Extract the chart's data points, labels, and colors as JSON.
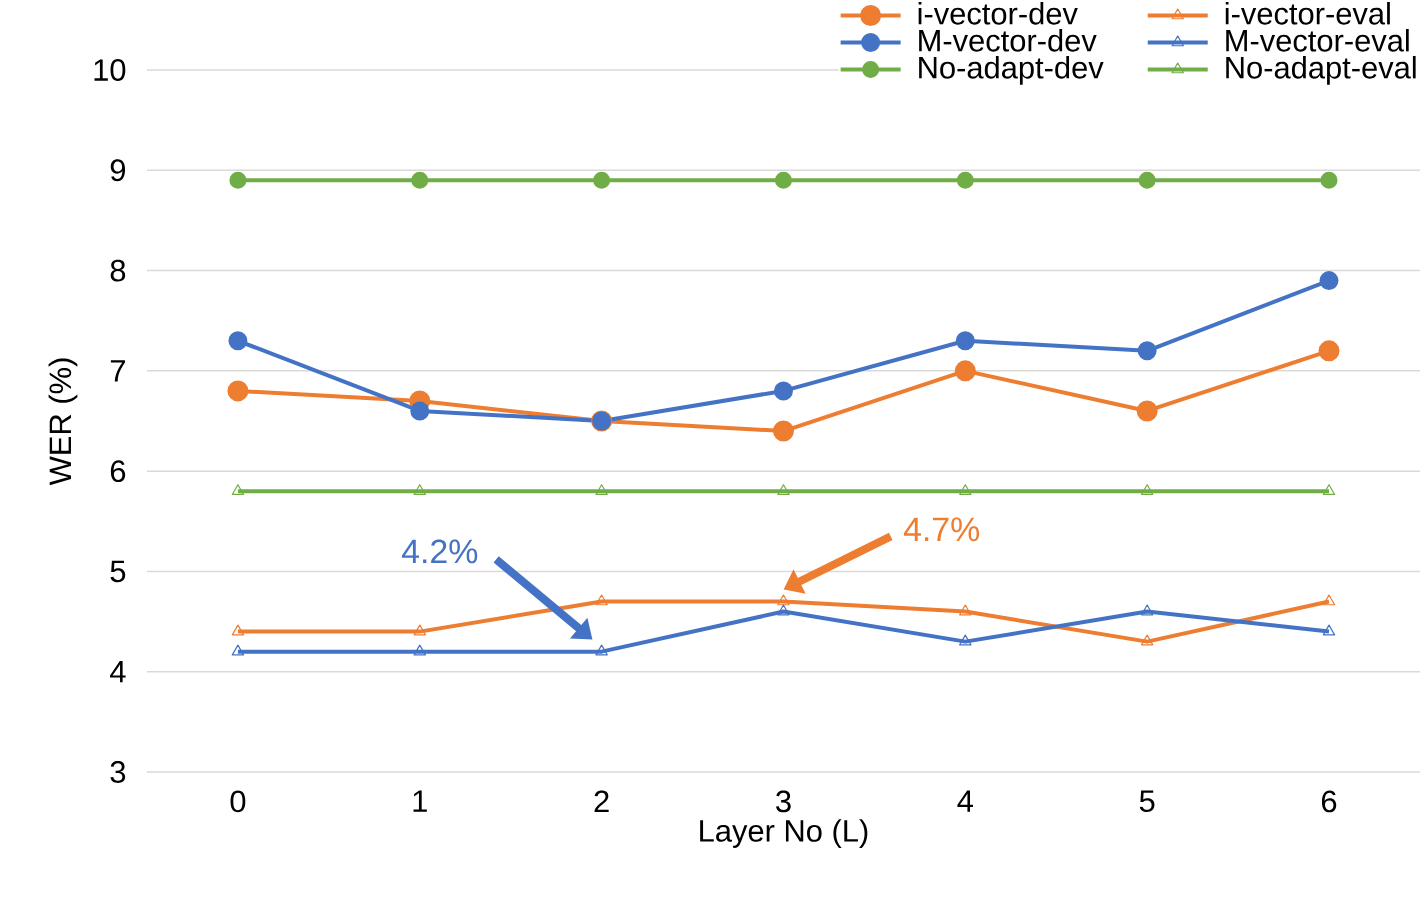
{
  "chart_data": {
    "type": "line",
    "xlabel": "Layer No (L)",
    "ylabel": "WER (%)",
    "categories": [
      "0",
      "1",
      "2",
      "3",
      "4",
      "5",
      "6"
    ],
    "series": [
      {
        "name": "i-vector-dev",
        "color": "#ed7d31",
        "marker": "circle",
        "values": [
          6.8,
          6.7,
          6.5,
          6.4,
          7.0,
          6.6,
          7.2
        ]
      },
      {
        "name": "i-vector-eval",
        "color": "#ed7d31",
        "marker": "triangle",
        "values": [
          4.4,
          4.4,
          4.7,
          4.7,
          4.6,
          4.3,
          4.7
        ]
      },
      {
        "name": "M-vector-dev",
        "color": "#4472c4",
        "marker": "circle",
        "values": [
          7.3,
          6.6,
          6.5,
          6.8,
          7.3,
          7.2,
          7.9
        ]
      },
      {
        "name": "M-vector-eval",
        "color": "#4472c4",
        "marker": "triangle",
        "values": [
          4.2,
          4.2,
          4.2,
          4.6,
          4.3,
          4.6,
          4.4
        ]
      },
      {
        "name": "No-adapt-dev",
        "color": "#70ad47",
        "marker": "circle",
        "values": [
          8.9,
          8.9,
          8.9,
          8.9,
          8.9,
          8.9,
          8.9
        ]
      },
      {
        "name": "No-adapt-eval",
        "color": "#70ad47",
        "marker": "triangle",
        "values": [
          5.8,
          5.8,
          5.8,
          5.8,
          5.8,
          5.8,
          5.8
        ]
      }
    ],
    "ylim": [
      3,
      10
    ],
    "yticks": [
      3,
      4,
      5,
      6,
      7,
      8,
      9,
      10
    ],
    "grid": "y",
    "legend": "top right",
    "line_style": "solid",
    "annotations": [
      "4.2%",
      "4.7%"
    ]
  }
}
